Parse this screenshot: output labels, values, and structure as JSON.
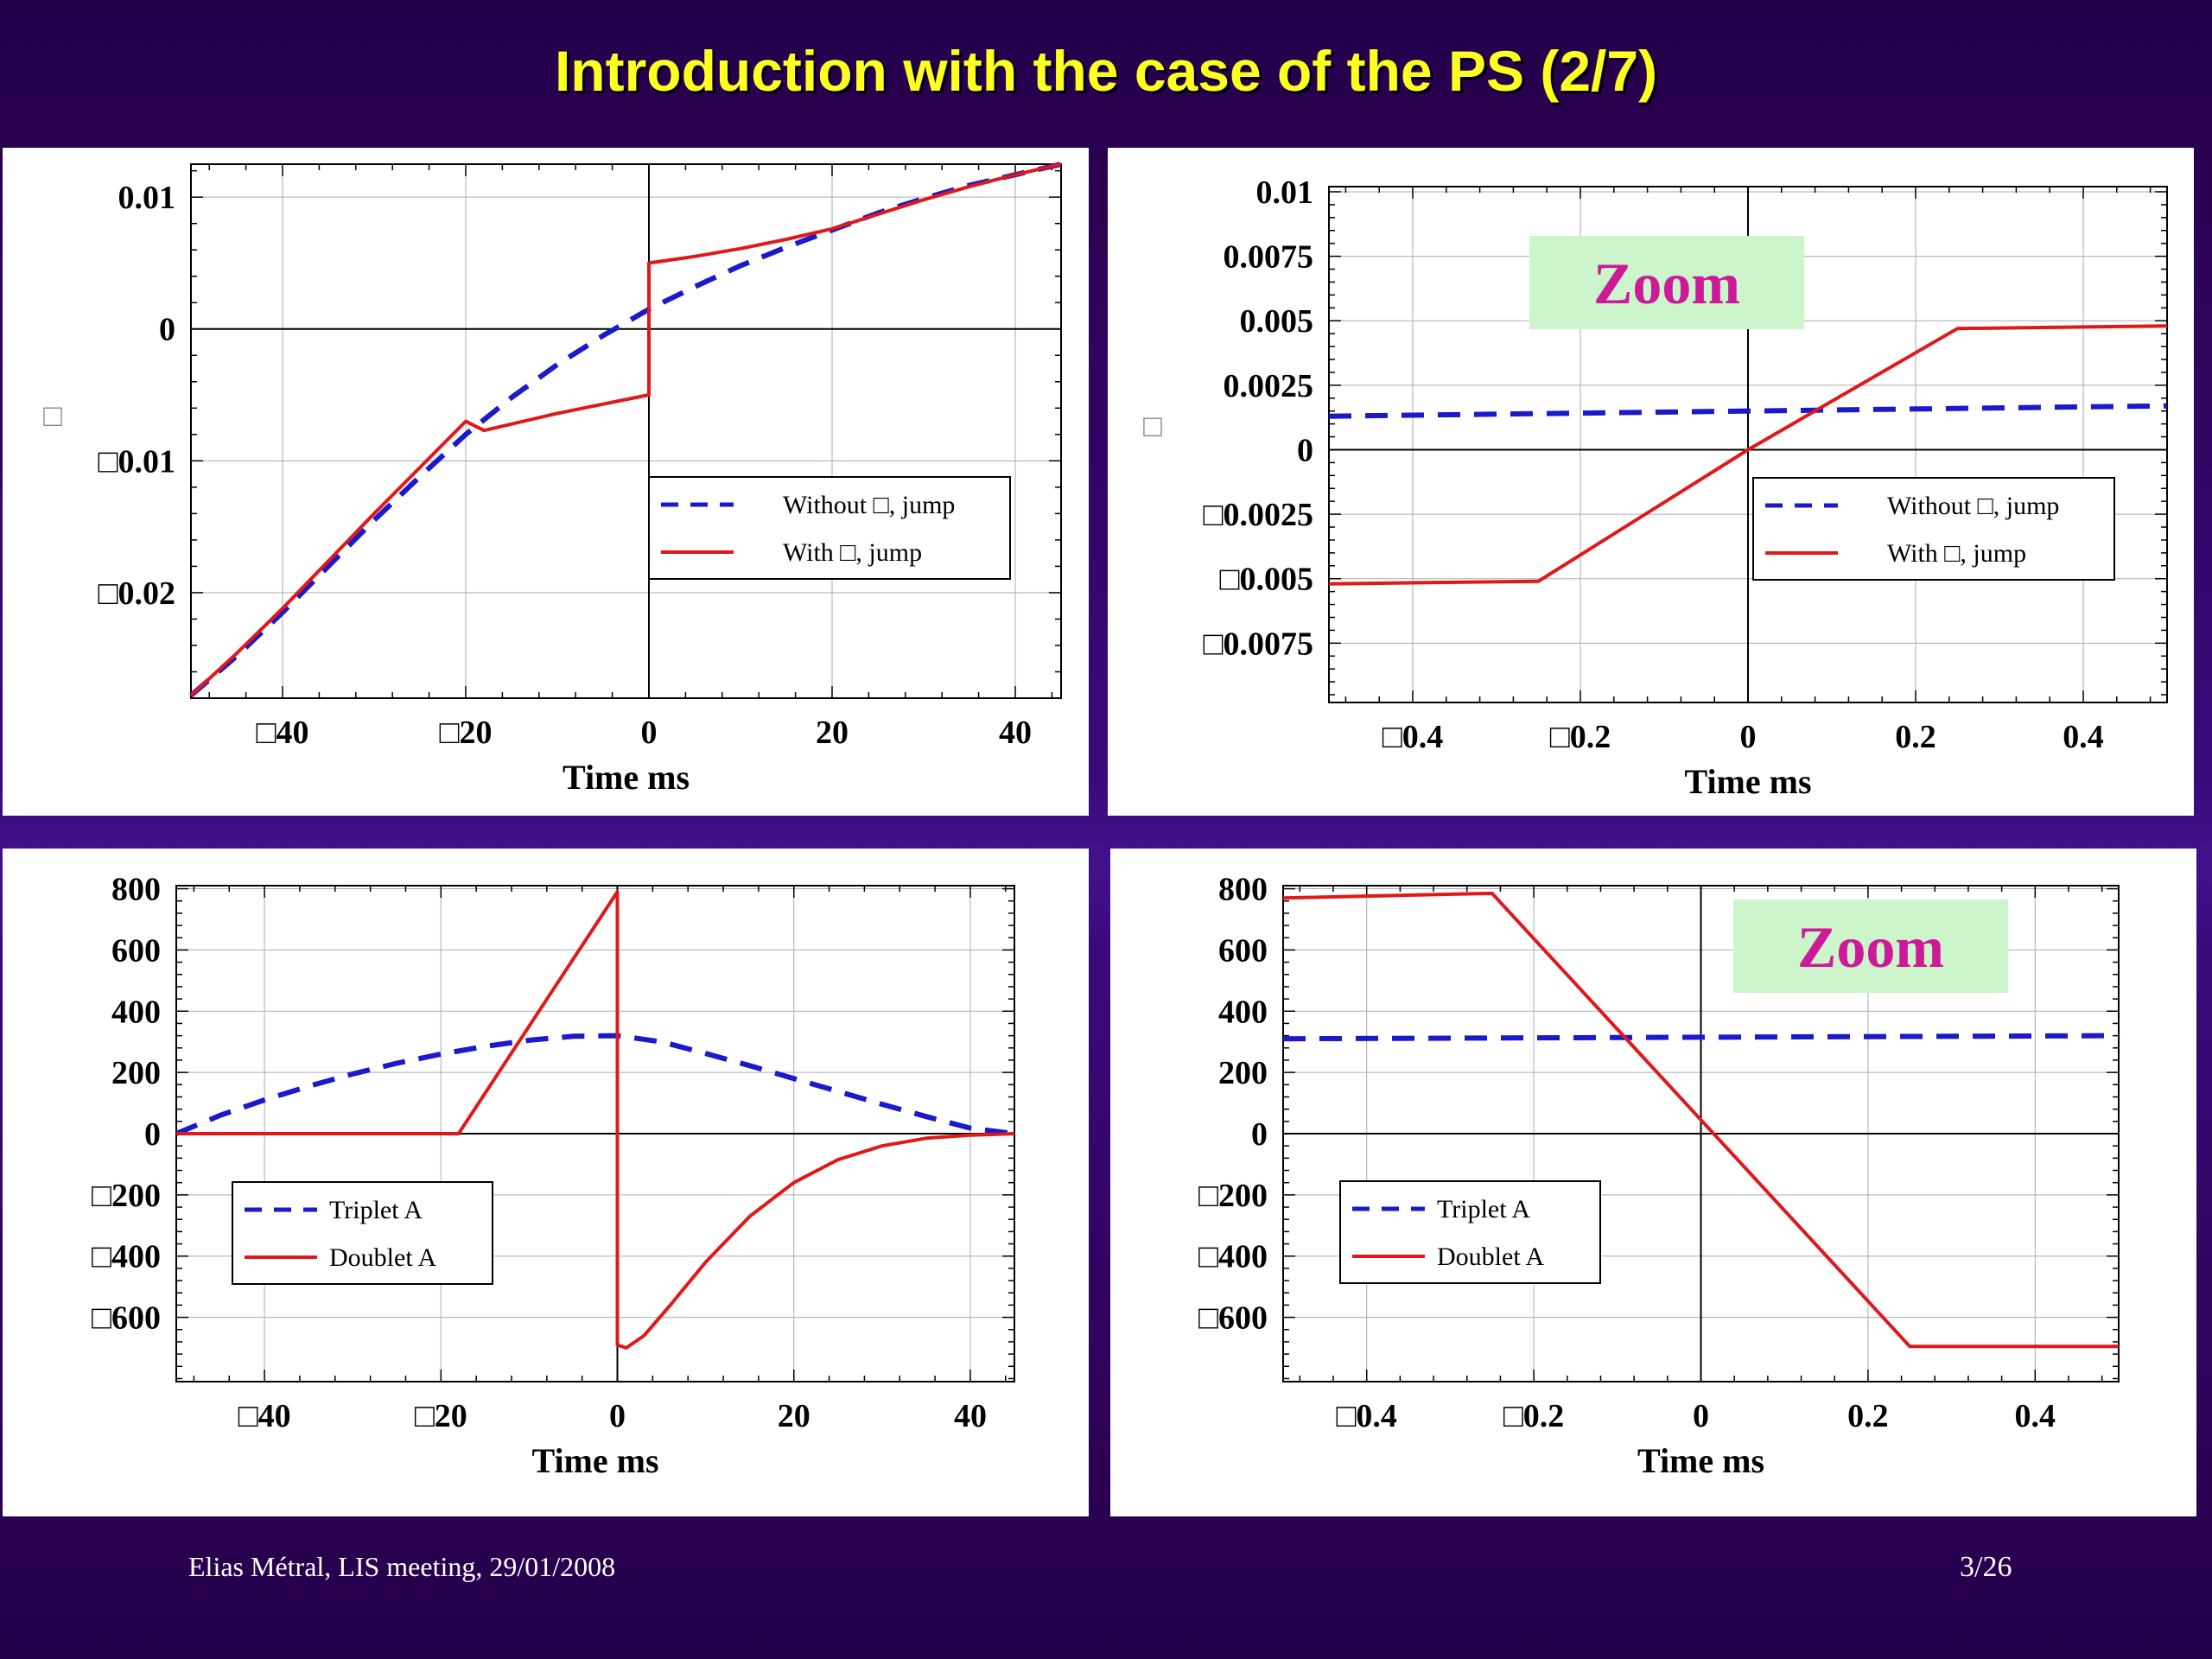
{
  "slide_title": "Introduction with the case of the PS (2/7)",
  "footer": {
    "left": "Elias Métral, LIS meeting, 29/01/2008",
    "right": "3/26"
  },
  "colors": {
    "background": "#2a0050",
    "title": "#ffff22",
    "series_dashed": "#1a1acc",
    "series_solid": "#e01818",
    "zoom_box": "#ccf5cc",
    "zoom_text": "#cc1a99"
  },
  "chart_data": [
    {
      "type": "line",
      "title": "",
      "xlabel": "Time   ms",
      "ylabel": "□",
      "xlim": [
        -50,
        45
      ],
      "ylim": [
        -0.028,
        0.0125
      ],
      "xticks": [
        -40,
        -20,
        0,
        20,
        40
      ],
      "xtick_labels": [
        "□40",
        "□20",
        "0",
        "20",
        "40"
      ],
      "yticks": [
        0.01,
        0,
        -0.01,
        -0.02
      ],
      "ytick_labels": [
        "0.01",
        "0",
        "□0.01",
        "□0.02"
      ],
      "grid": true,
      "legend": "center-right",
      "series": [
        {
          "name": "Without □, jump",
          "style": "dashed",
          "x": [
            -50,
            -45,
            -40,
            -35,
            -30,
            -25,
            -20,
            -15,
            -10,
            -5,
            0,
            5,
            10,
            15,
            20,
            25,
            30,
            35,
            40,
            45
          ],
          "y": [
            -0.0278,
            -0.0248,
            -0.0215,
            -0.018,
            -0.0145,
            -0.0112,
            -0.008,
            -0.0052,
            -0.0027,
            -0.0005,
            0.0015,
            0.0032,
            0.0048,
            0.0062,
            0.0075,
            0.0088,
            0.0099,
            0.0109,
            0.0117,
            0.0125
          ]
        },
        {
          "name": "With □, jump",
          "style": "solid",
          "x": [
            -50,
            -45,
            -40,
            -35,
            -30,
            -25,
            -20,
            -18,
            -10,
            -5,
            0,
            0,
            5,
            10,
            15,
            20,
            25,
            30,
            35,
            40,
            45
          ],
          "y": [
            -0.0278,
            -0.0246,
            -0.0212,
            -0.0176,
            -0.014,
            -0.0105,
            -0.007,
            -0.0077,
            -0.0064,
            -0.0057,
            -0.005,
            0.005,
            0.0055,
            0.0061,
            0.0068,
            0.0076,
            0.0087,
            0.0098,
            0.0108,
            0.0117,
            0.0125
          ]
        }
      ]
    },
    {
      "type": "line",
      "title": "",
      "xlabel": "Time   ms",
      "ylabel": "□",
      "xlim": [
        -0.5,
        0.5
      ],
      "ylim": [
        -0.0098,
        0.0102
      ],
      "xticks": [
        -0.4,
        -0.2,
        0,
        0.2,
        0.4
      ],
      "xtick_labels": [
        "□0.4",
        "□0.2",
        "0",
        "0.2",
        "0.4"
      ],
      "yticks": [
        0.01,
        0.0075,
        0.005,
        0.0025,
        0,
        -0.0025,
        -0.005,
        -0.0075
      ],
      "ytick_labels": [
        "0.01",
        "0.0075",
        "0.005",
        "0.0025",
        "0",
        "□0.0025",
        "□0.005",
        "□0.0075"
      ],
      "grid": true,
      "legend": "center-right",
      "annotation": "Zoom",
      "series": [
        {
          "name": "Without □, jump",
          "style": "dashed",
          "x": [
            -0.5,
            0.5
          ],
          "y": [
            0.0013,
            0.0017
          ]
        },
        {
          "name": "With □, jump",
          "style": "solid",
          "x": [
            -0.5,
            -0.25,
            0,
            0.25,
            0.5
          ],
          "y": [
            -0.0052,
            -0.0051,
            0.0,
            0.0047,
            0.0048
          ]
        }
      ]
    },
    {
      "type": "line",
      "title": "",
      "xlabel": "Time   ms",
      "ylabel": "",
      "xlim": [
        -50,
        45
      ],
      "ylim": [
        -810,
        810
      ],
      "xticks": [
        -40,
        -20,
        0,
        20,
        40
      ],
      "xtick_labels": [
        "□40",
        "□20",
        "0",
        "20",
        "40"
      ],
      "yticks": [
        800,
        600,
        400,
        200,
        0,
        -200,
        -400,
        -600
      ],
      "ytick_labels": [
        "800",
        "600",
        "400",
        "200",
        "0",
        "□200",
        "□400",
        "□600"
      ],
      "grid": true,
      "legend": "lower-left",
      "series": [
        {
          "name": "Triplet   A",
          "style": "dashed",
          "x": [
            -50,
            -45,
            -40,
            -35,
            -30,
            -25,
            -20,
            -15,
            -10,
            -5,
            0,
            5,
            10,
            15,
            20,
            25,
            30,
            35,
            40,
            45
          ],
          "y": [
            0,
            60,
            110,
            155,
            195,
            230,
            260,
            285,
            305,
            318,
            320,
            300,
            262,
            222,
            180,
            138,
            96,
            56,
            18,
            0
          ]
        },
        {
          "name": "Doublet   A",
          "style": "solid",
          "x": [
            -50,
            -18,
            0,
            0,
            1,
            3,
            6,
            10,
            15,
            20,
            25,
            30,
            35,
            40,
            45
          ],
          "y": [
            0,
            0,
            790,
            -690,
            -700,
            -660,
            -560,
            -420,
            -270,
            -160,
            -85,
            -40,
            -15,
            -5,
            0
          ]
        }
      ]
    },
    {
      "type": "line",
      "title": "",
      "xlabel": "Time   ms",
      "ylabel": "",
      "xlim": [
        -0.5,
        0.5
      ],
      "ylim": [
        -810,
        810
      ],
      "xticks": [
        -0.4,
        -0.2,
        0,
        0.2,
        0.4
      ],
      "xtick_labels": [
        "□0.4",
        "□0.2",
        "0",
        "0.2",
        "0.4"
      ],
      "yticks": [
        800,
        600,
        400,
        200,
        0,
        -200,
        -400,
        -600
      ],
      "ytick_labels": [
        "800",
        "600",
        "400",
        "200",
        "0",
        "□200",
        "□400",
        "□600"
      ],
      "grid": true,
      "legend": "lower-left",
      "annotation": "Zoom",
      "series": [
        {
          "name": "Triplet   A",
          "style": "dashed",
          "x": [
            -0.5,
            0.5
          ],
          "y": [
            310,
            320
          ]
        },
        {
          "name": "Doublet   A",
          "style": "solid",
          "x": [
            -0.5,
            -0.25,
            0.25,
            0.5
          ],
          "y": [
            770,
            785,
            -695,
            -695
          ]
        }
      ]
    }
  ]
}
